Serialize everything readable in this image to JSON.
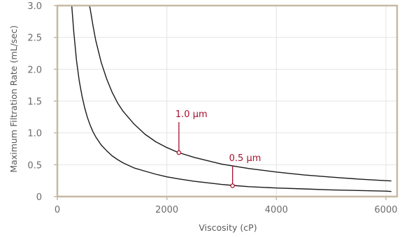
{
  "chart_data": {
    "type": "line",
    "title": "",
    "xlabel": "Viscosity (cP)",
    "ylabel": "Maximum Filtration Rate (mL/sec)",
    "xlim": [
      -100,
      6200
    ],
    "ylim": [
      0,
      3.0
    ],
    "x_ticks": [
      0,
      2000,
      4000,
      6000
    ],
    "y_ticks": [
      0,
      0.5,
      1.0,
      1.5,
      2.0,
      2.5,
      3.0
    ],
    "x_tick_labels": [
      "0",
      "2000",
      "4000",
      "6000"
    ],
    "y_tick_labels": [
      "0",
      "0.5",
      "1.0",
      "1.5",
      "2.0",
      "2.5",
      "3.0"
    ],
    "grid": true,
    "series": [
      {
        "name": "",
        "color": "#1a1a1a",
        "x": [
          260,
          300,
          350,
          400,
          450,
          500,
          550,
          600,
          650,
          700,
          800,
          900,
          1000,
          1100,
          1200,
          1300,
          1400,
          1600,
          1800,
          2000,
          2200,
          2500,
          3000,
          3200,
          3500,
          4000,
          4500,
          5000,
          5500,
          6000,
          6100
        ],
        "y": [
          3.03,
          2.59,
          2.14,
          1.82,
          1.58,
          1.39,
          1.24,
          1.12,
          1.02,
          0.94,
          0.81,
          0.72,
          0.64,
          0.58,
          0.53,
          0.49,
          0.45,
          0.4,
          0.35,
          0.31,
          0.28,
          0.24,
          0.19,
          0.175,
          0.155,
          0.135,
          0.12,
          0.105,
          0.095,
          0.085,
          0.08
        ]
      },
      {
        "name": "",
        "color": "#1a1a1a",
        "x": [
          570,
          600,
          650,
          700,
          800,
          900,
          1000,
          1100,
          1200,
          1400,
          1600,
          1800,
          2000,
          2200,
          2500,
          3000,
          3500,
          4000,
          4500,
          5000,
          5500,
          6000,
          6100
        ],
        "y": [
          3.05,
          2.95,
          2.69,
          2.46,
          2.11,
          1.85,
          1.64,
          1.47,
          1.34,
          1.14,
          0.98,
          0.86,
          0.77,
          0.695,
          0.615,
          0.51,
          0.44,
          0.385,
          0.34,
          0.305,
          0.275,
          0.25,
          0.245
        ]
      }
    ],
    "annotations": [
      {
        "text": "1.0 µm",
        "x": 2220,
        "y": 0.69,
        "label_y": 1.17,
        "color": "#a8102f"
      },
      {
        "text": "0.5 µm",
        "x": 3200,
        "y": 0.17,
        "label_y": 0.48,
        "color": "#a8102f"
      }
    ],
    "colors": {
      "frame": "#c6b9a3",
      "grid": "#e4e4e4",
      "line": "#1a1a1a",
      "accent": "#a8102f"
    }
  }
}
